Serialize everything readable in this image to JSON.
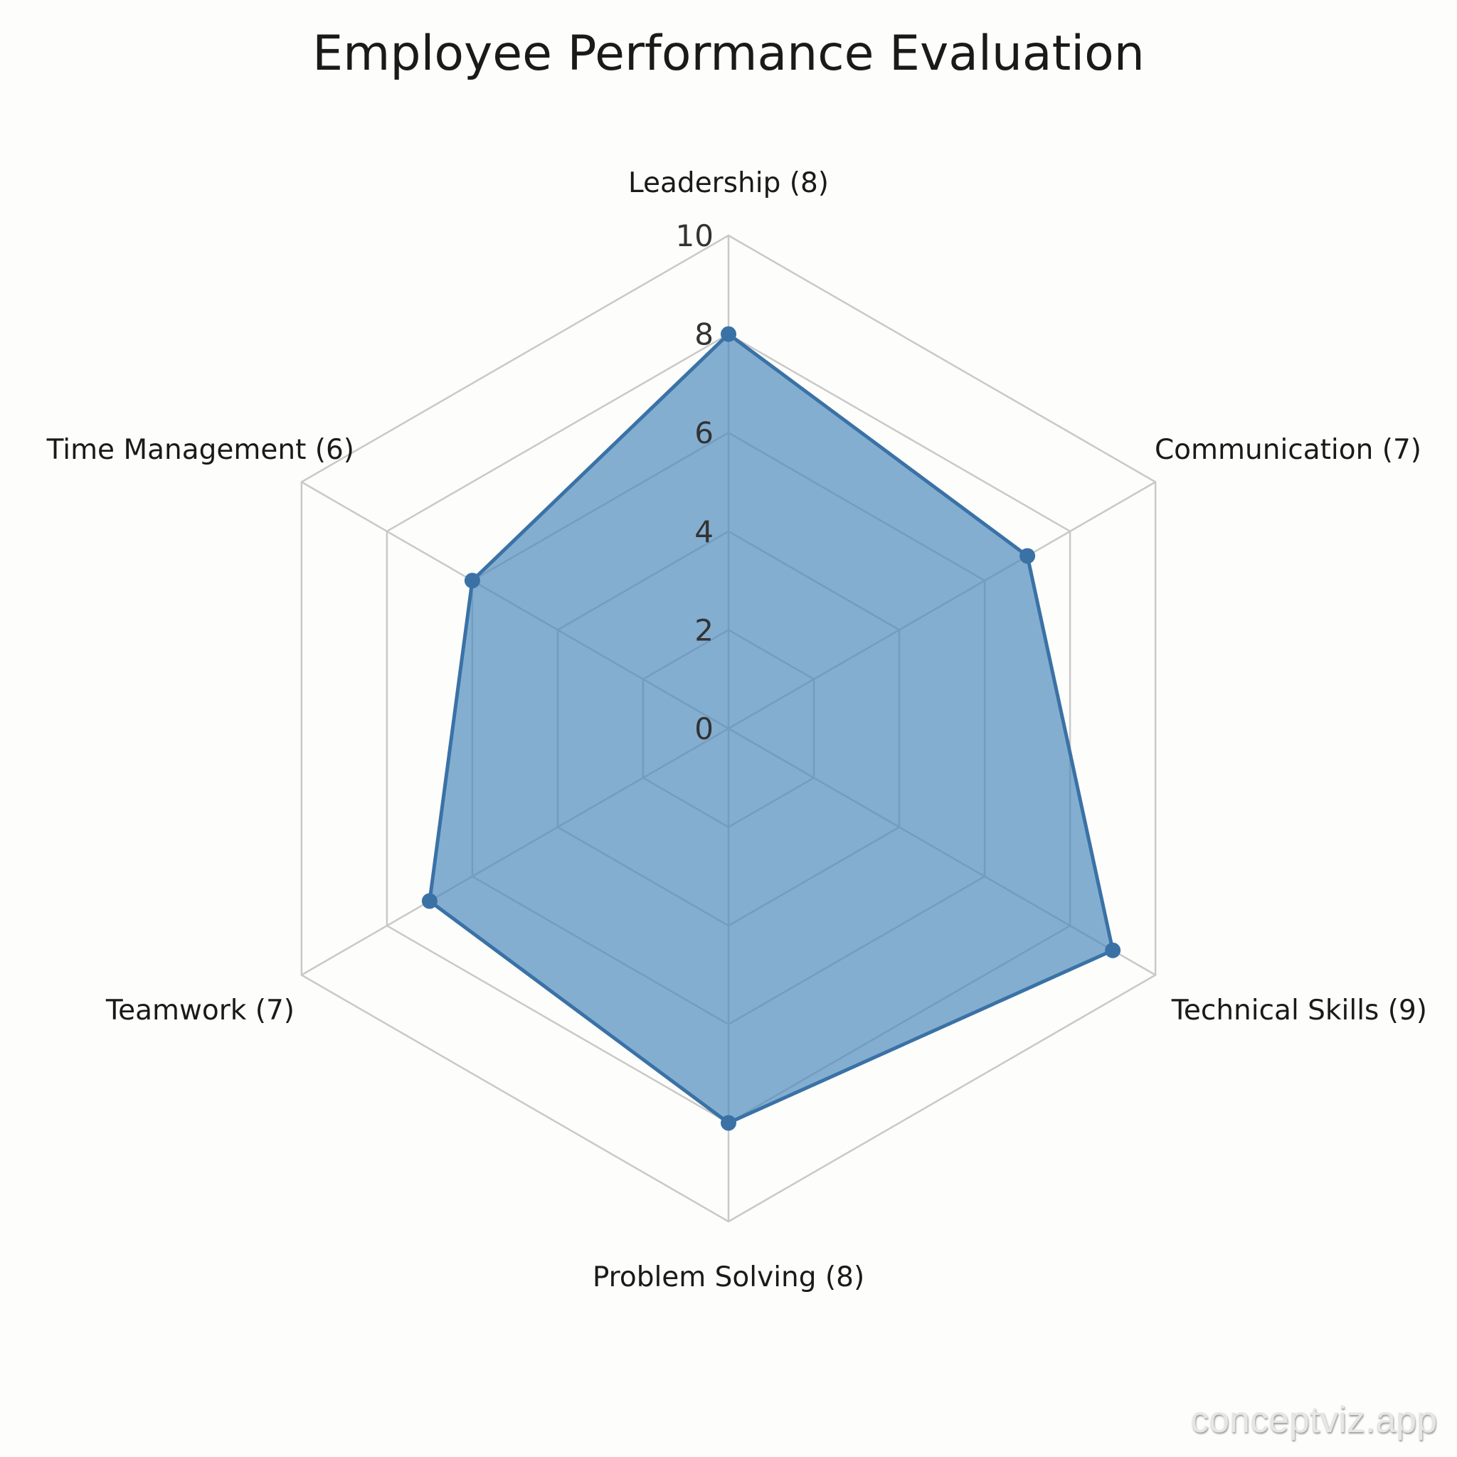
{
  "chart_data": {
    "type": "radar",
    "title": "Employee Performance Evaluation",
    "categories": [
      "Leadership (8)",
      "Communication (7)",
      "Technical Skills (9)",
      "Problem Solving (8)",
      "Teamwork (7)",
      "Time Management (6)"
    ],
    "values": [
      8,
      7,
      9,
      8,
      7,
      6
    ],
    "rlim": [
      0,
      10
    ],
    "r_ticks": [
      "0",
      "2",
      "4",
      "6",
      "8",
      "10"
    ],
    "grid": true,
    "colors": {
      "fill": "#4a88bb",
      "line": "#3a72a6",
      "grid": "#c9c9c9"
    }
  },
  "watermark": "conceptviz.app"
}
